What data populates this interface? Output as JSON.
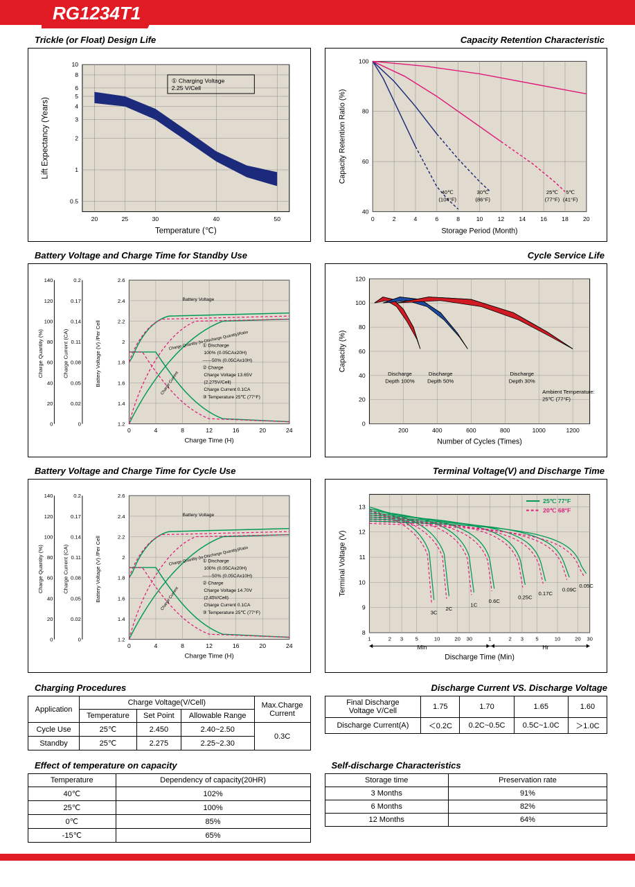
{
  "header": {
    "model": "RG1234T1"
  },
  "charts": {
    "trickle": {
      "title": "Trickle (or Float) Design Life",
      "xlabel": "Temperature (℃)",
      "ylabel": "Lift Expectancy (Years)",
      "xticks": [
        20,
        25,
        30,
        40,
        50
      ],
      "yticks": [
        0.5,
        1,
        2,
        3,
        4,
        5,
        6,
        8,
        10
      ],
      "annotation": "① Charging Voltage\n2.25 V/Cell",
      "bg": "#e0dacf",
      "band_color": "#1b2a7a",
      "band_upper": [
        [
          20,
          5.5
        ],
        [
          25,
          5.0
        ],
        [
          30,
          3.8
        ],
        [
          35,
          2.4
        ],
        [
          40,
          1.5
        ],
        [
          45,
          1.1
        ],
        [
          50,
          0.95
        ]
      ],
      "band_lower": [
        [
          20,
          4.3
        ],
        [
          25,
          4.0
        ],
        [
          30,
          3.0
        ],
        [
          35,
          1.9
        ],
        [
          40,
          1.2
        ],
        [
          45,
          0.85
        ],
        [
          50,
          0.7
        ]
      ]
    },
    "capacity_retention": {
      "title": "Capacity Retention Characteristic",
      "xlabel": "Storage Period (Month)",
      "ylabel": "Capacity Retention Ratio (%)",
      "xlim": [
        0,
        20
      ],
      "ylim": [
        40,
        100
      ],
      "xtick_step": 2,
      "ytick_step": 20,
      "bg": "#e0dacf",
      "curves": [
        {
          "label": "40℃\n(104°F)",
          "color": "#1b2a7a",
          "pts": [
            [
              0,
              100
            ],
            [
              1,
              93
            ],
            [
              2,
              84
            ],
            [
              3,
              75
            ],
            [
              4,
              66
            ],
            [
              5,
              58
            ],
            [
              6,
              50
            ],
            [
              7,
              45
            ],
            [
              8,
              41
            ]
          ],
          "xlabel_x": 7,
          "dashed_from": 4.5
        },
        {
          "label": "30℃\n(86°F)",
          "color": "#1b2a7a",
          "pts": [
            [
              0,
              100
            ],
            [
              2,
              92
            ],
            [
              4,
              82
            ],
            [
              6,
              71
            ],
            [
              8,
              61
            ],
            [
              10,
              52
            ],
            [
              11,
              48
            ]
          ],
          "xlabel_x": 10.3,
          "dashed_from": 7
        },
        {
          "label": "25℃\n(77°F)",
          "color": "#e01b7a",
          "pts": [
            [
              0,
              100
            ],
            [
              3,
              94
            ],
            [
              6,
              86
            ],
            [
              9,
              77
            ],
            [
              12,
              68
            ],
            [
              15,
              59
            ],
            [
              17,
              52
            ],
            [
              18,
              48
            ]
          ],
          "xlabel_x": 16.8,
          "dashed_from": 12
        },
        {
          "label": "5℃\n(41°F)",
          "color": "#e01b7a",
          "pts": [
            [
              0,
              100
            ],
            [
              5,
              98
            ],
            [
              10,
              95
            ],
            [
              15,
              91
            ],
            [
              20,
              87
            ]
          ],
          "xlabel_x": 18.5,
          "dashed_from": 99
        }
      ]
    },
    "standby_charge": {
      "title": "Battery Voltage and Charge Time for Standby Use",
      "xlabel": "Charge Time (H)",
      "y1label": "Charge Quantity (%)",
      "y2label": "Charge Current (CA)",
      "y3label": "Battery Voltage (V) /Per Cell",
      "xticks": [
        0,
        4,
        8,
        12,
        16,
        20,
        24
      ],
      "y1ticks": [
        0,
        20,
        40,
        60,
        80,
        100,
        120,
        140
      ],
      "y2ticks": [
        0,
        0.02,
        0.05,
        0.08,
        0.11,
        0.14,
        0.17,
        0.2
      ],
      "y3ticks": [
        1.2,
        1.4,
        1.6,
        1.8,
        2.0,
        2.2,
        2.4,
        2.6
      ],
      "bg": "#e0dacf",
      "note": "① Discharge\n    100% (0.05CAx20H)\n------50% (0.05CAx10H)\n② Charge\n    Charge Voltage 13.65V\n    (2.275V/Cell)\n    Charge Current 0.1CA\n③ Temperature 25℃ (77°F)",
      "green": "#009955",
      "pink": "#e01b7a"
    },
    "cycle_life": {
      "title": "Cycle Service Life",
      "xlabel": "Number of Cycles (Times)",
      "ylabel": "Capacity (%)",
      "xlim": [
        0,
        1300
      ],
      "ylim": [
        0,
        120
      ],
      "xticks": [
        200,
        400,
        600,
        800,
        1000,
        1200
      ],
      "yticks": [
        0,
        20,
        40,
        60,
        80,
        100,
        120
      ],
      "bg": "#e0dacf",
      "ambient": "Ambient Temperature:\n25℃ (77°F)",
      "wedges": [
        {
          "label": "Discharge\nDepth 100%",
          "color": "#d01b24",
          "outline": [
            [
              30,
              100
            ],
            [
              80,
              105
            ],
            [
              140,
              103
            ],
            [
              200,
              95
            ],
            [
              260,
              80
            ],
            [
              300,
              62
            ]
          ],
          "inner": [
            [
              30,
              100
            ],
            [
              100,
              102
            ],
            [
              160,
              97
            ],
            [
              220,
              85
            ],
            [
              280,
              70
            ],
            [
              300,
              62
            ]
          ]
        },
        {
          "label": "Discharge\nDepth 50%",
          "color": "#1b4aa0",
          "outline": [
            [
              80,
              100
            ],
            [
              180,
              105
            ],
            [
              300,
              103
            ],
            [
              420,
              92
            ],
            [
              520,
              75
            ],
            [
              580,
              62
            ]
          ],
          "inner": [
            [
              80,
              100
            ],
            [
              220,
              102
            ],
            [
              340,
              97
            ],
            [
              440,
              86
            ],
            [
              530,
              72
            ],
            [
              580,
              62
            ]
          ]
        },
        {
          "label": "Discharge\nDepth 30%",
          "color": "#d01b24",
          "outline": [
            [
              160,
              100
            ],
            [
              350,
              105
            ],
            [
              600,
              103
            ],
            [
              850,
              92
            ],
            [
              1050,
              76
            ],
            [
              1200,
              62
            ]
          ],
          "inner": [
            [
              160,
              100
            ],
            [
              420,
              102
            ],
            [
              660,
              97
            ],
            [
              880,
              86
            ],
            [
              1070,
              72
            ],
            [
              1200,
              62
            ]
          ]
        }
      ]
    },
    "cycle_charge": {
      "title": "Battery Voltage and Charge Time for Cycle Use",
      "xlabel": "Charge Time (H)",
      "bg": "#e0dacf",
      "note": "① Discharge\n    100% (0.05CAx20H)\n------50% (0.05CAx10H)\n② Charge\n    Charge Voltage 14.70V\n    (2.45V/Cell)\n    Charge Current 0.1CA\n③ Temperature 25℃ (77°F)"
    },
    "terminal_voltage": {
      "title": "Terminal Voltage(V) and Discharge Time",
      "xlabel": "Discharge Time (Min)",
      "ylabel": "Terminal Voltage (V)",
      "yticks": [
        8,
        9,
        10,
        11,
        12,
        13
      ],
      "bg": "#e0dacf",
      "legend": [
        {
          "label": "25℃ 77°F",
          "color": "#009955",
          "style": "solid"
        },
        {
          "label": "20℃ 68°F",
          "color": "#e01b7a",
          "style": "dashed"
        }
      ],
      "c_labels": [
        "3C",
        "2C",
        "1C",
        "0.6C",
        "0.25C",
        "0.17C",
        "0.09C",
        "0.05C"
      ]
    }
  },
  "tables": {
    "charging": {
      "title": "Charging Procedures",
      "h1": "Application",
      "h2": "Charge Voltage(V/Cell)",
      "h3": "Max.Charge\nCurrent",
      "sub": [
        "Temperature",
        "Set Point",
        "Allowable Range"
      ],
      "rows": [
        [
          "Cycle Use",
          "25℃",
          "2.450",
          "2.40~2.50"
        ],
        [
          "Standby",
          "25℃",
          "2.275",
          "2.25~2.30"
        ]
      ],
      "max_current": "0.3C"
    },
    "temp_capacity": {
      "title": "Effect of temperature on capacity",
      "headers": [
        "Temperature",
        "Dependency of capacity(20HR)"
      ],
      "rows": [
        [
          "40℃",
          "102%"
        ],
        [
          "25℃",
          "100%"
        ],
        [
          "0℃",
          "85%"
        ],
        [
          "-15℃",
          "65%"
        ]
      ]
    },
    "discharge_cv": {
      "title": "Discharge Current VS. Discharge Voltage",
      "h1": "Final Discharge\nVoltage V/Cell",
      "cols": [
        "1.75",
        "1.70",
        "1.65",
        "1.60"
      ],
      "h2": "Discharge Current(A)",
      "vals": [
        "＜0.2C",
        "0.2C~0.5C",
        "0.5C~1.0C",
        "＞1.0C"
      ]
    },
    "self_discharge": {
      "title": "Self-discharge Characteristics",
      "headers": [
        "Storage time",
        "Preservation rate"
      ],
      "rows": [
        [
          "3 Months",
          "91%"
        ],
        [
          "6 Months",
          "82%"
        ],
        [
          "12 Months",
          "64%"
        ]
      ]
    }
  }
}
